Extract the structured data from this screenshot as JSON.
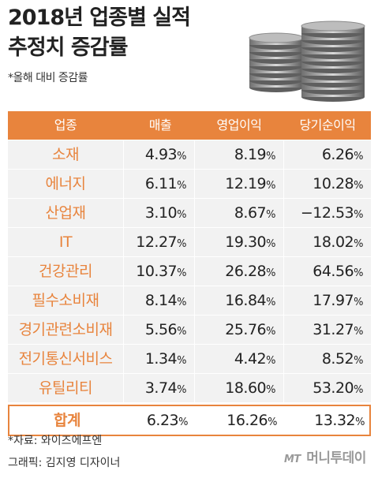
{
  "title_line1": "2018년 업종별 실적",
  "title_line2": "추정치 증감률",
  "subtitle": "*올해 대비 증감률",
  "colors": {
    "accent": "#e8843d",
    "row_bg": "#f2f2f2"
  },
  "chart_data": {
    "type": "table",
    "title": "2018년 업종별 실적 추정치 증감률",
    "subtitle": "*올해 대비 증감률",
    "columns": [
      "업종",
      "매출",
      "영업이익",
      "당기순이익"
    ],
    "rows": [
      {
        "name": "소재",
        "values": [
          "4.93",
          "8.19",
          "6.26"
        ]
      },
      {
        "name": "에너지",
        "values": [
          "6.11",
          "12.19",
          "10.28"
        ]
      },
      {
        "name": "산업재",
        "values": [
          "3.10",
          "8.67",
          "−12.53"
        ]
      },
      {
        "name": "IT",
        "values": [
          "12.27",
          "19.30",
          "18.02"
        ]
      },
      {
        "name": "건강관리",
        "values": [
          "10.37",
          "26.28",
          "64.56"
        ]
      },
      {
        "name": "필수소비재",
        "values": [
          "8.14",
          "16.84",
          "17.97"
        ]
      },
      {
        "name": "경기관련소비재",
        "values": [
          "5.56",
          "25.76",
          "31.27"
        ]
      },
      {
        "name": "전기통신서비스",
        "values": [
          "1.34",
          "4.42",
          "8.52"
        ]
      },
      {
        "name": "유틸리티",
        "values": [
          "3.74",
          "18.60",
          "53.20"
        ]
      }
    ],
    "total": {
      "name": "합계",
      "values": [
        "6.23",
        "16.26",
        "13.32"
      ]
    },
    "unit": "%"
  },
  "source": "*자료: 와이즈에프엔",
  "credit": "그래픽: 김지영 디자이너",
  "logo": {
    "mt": "MT",
    "name": "머니투데이"
  }
}
